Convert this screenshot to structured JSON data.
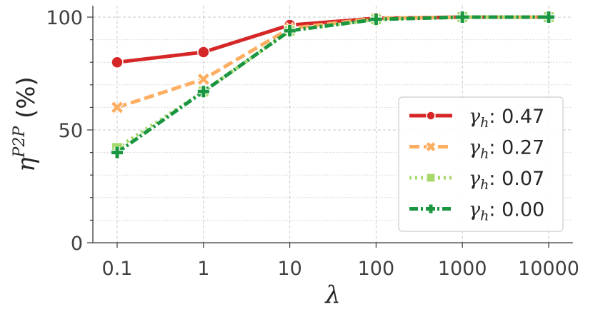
{
  "chart_data": {
    "type": "line",
    "title": "",
    "xlabel": "λ",
    "ylabel": {
      "base": "η",
      "sup": "P2P",
      "rest": " (%)"
    },
    "x_scale": "log",
    "categories": [
      "0.1",
      "1",
      "10",
      "100",
      "1000",
      "10000"
    ],
    "x": [
      0.1,
      1,
      10,
      100,
      1000,
      10000
    ],
    "ylim": [
      0,
      100
    ],
    "yticks": [
      "0",
      "50",
      "100"
    ],
    "grid": true,
    "legend_position": "center-right",
    "series": [
      {
        "name": "0.47",
        "legend_symbol": "γ",
        "legend_sub": "h",
        "legend_suffix": ": ",
        "color": "#d62728",
        "linestyle": "solid",
        "marker": "circle",
        "values": [
          80,
          84.5,
          96.5,
          99.5,
          100,
          100
        ]
      },
      {
        "name": "0.27",
        "legend_symbol": "γ",
        "legend_sub": "h",
        "legend_suffix": ": ",
        "color": "#fdae61",
        "linestyle": "dashed",
        "marker": "x",
        "values": [
          60,
          72.5,
          95,
          99.5,
          100,
          100
        ]
      },
      {
        "name": "0.07",
        "legend_symbol": "γ",
        "legend_sub": "h",
        "legend_suffix": ": ",
        "color": "#a6d96a",
        "linestyle": "dotted",
        "marker": "square",
        "values": [
          42,
          67,
          94,
          99,
          100,
          100
        ]
      },
      {
        "name": "0.00",
        "legend_symbol": "γ",
        "legend_sub": "h",
        "legend_suffix": ": ",
        "color": "#1a9641",
        "linestyle": "dashdot",
        "marker": "plus",
        "values": [
          40,
          67,
          94,
          99,
          100,
          100
        ]
      }
    ]
  }
}
